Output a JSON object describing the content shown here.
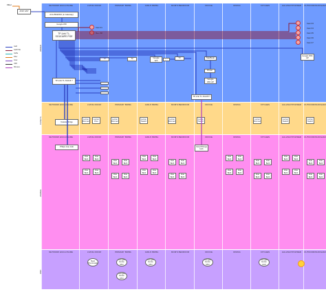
{
  "isp": {
    "fiber_label": "Fiber",
    "modem_label": "AT&T 2/67"
  },
  "lanes": [
    "NETWORK ENCLOSURE",
    "LIVING ROOM",
    "PRIMARY BR/BA",
    "GIRLS' BR/BA",
    "MOM'S BEDROOM",
    "OFFICE",
    "DINING",
    "KITCHEN",
    "HALLWAY/POWDER",
    "OUTDOOR/MUD/GARAGE"
  ],
  "lanes_second": [
    "NETWORK ENCLOSURE",
    "LIVING ROOM",
    "PRIMARY BR/BA",
    "GIRLS' BR/BA",
    "MOM'S BEDROOM",
    "OFFICE",
    "DINING",
    "KITCHEN",
    "HALLWAY/POWDER",
    "OUTDOOR/MUD/GARAGE"
  ],
  "rows": {
    "wired": "WIRED",
    "caseta": "CASETA",
    "zigbee": "ZIGBEE",
    "wifi": "WIFI"
  },
  "legend": [
    {
      "label": "Cat6",
      "color": "#2b3fbf"
    },
    {
      "label": "Cat6 PoE",
      "color": "#8a1b3a"
    },
    {
      "label": "Cat5e",
      "color": "#1fb3b3"
    },
    {
      "label": "Fiber",
      "color": "#e07b1a"
    },
    {
      "label": "Coax",
      "color": "#7a3fbf"
    },
    {
      "label": "USB",
      "color": "#333333"
    },
    {
      "label": "Wireless",
      "color": "#b03fbf"
    }
  ],
  "network": {
    "gateway": "Arris BGW210 (in Gateway)",
    "google_wifi": "Google Wifi",
    "switch_main": "TP-Link TL-SG1016PE POE",
    "switch_2": "TP-Link TL-SG116 ?",
    "nvr": "NVR",
    "office_switch": "TP-Link TL-SG105 ?"
  },
  "wired_devices": {
    "living": [
      "TV"
    ],
    "primary": [
      "TV"
    ],
    "girls": [
      "Google Wifi"
    ],
    "office": [
      "TV",
      "MacBook",
      "Printer",
      "Google WiFi AP"
    ],
    "outdoor_ap": "Google WiFi AP",
    "cameras": [
      "Cam 01",
      "Cam 02",
      "Cam 03",
      "Cam 04",
      "Cam 05",
      "Cam 06",
      "Cam 07"
    ]
  },
  "caseta": {
    "bridge": "Caseta Bridge",
    "devices": [
      {
        "lane": 1,
        "label": "Lutron Dimmer"
      },
      {
        "lane": 1,
        "label": "Lutron Pico"
      },
      {
        "lane": 2,
        "label": "Lutron Dimmer"
      },
      {
        "lane": 3,
        "label": "Lutron Switch"
      },
      {
        "lane": 4,
        "label": "Lutron Dimmer"
      },
      {
        "lane": 5,
        "label": "Lutron Switch"
      },
      {
        "lane": 7,
        "label": "Lutron Dimmer"
      },
      {
        "lane": 8,
        "label": "Lutron Switch"
      },
      {
        "lane": 9,
        "label": "Lutron Switch"
      }
    ]
  },
  "zigbee": {
    "hub": "Philips Hue Hub",
    "office_hub": "SmartThings Hub",
    "devices": [
      {
        "lane": 1,
        "label": "Hue Bulb"
      },
      {
        "lane": 2,
        "label": "Hue Bulb"
      },
      {
        "lane": 3,
        "label": "Hue Bulb"
      },
      {
        "lane": 4,
        "label": "Hue Bulb"
      },
      {
        "lane": 6,
        "label": "Hue Bulb"
      },
      {
        "lane": 7,
        "label": "Hue Bulb"
      },
      {
        "lane": 8,
        "label": "Hue Bulb"
      },
      {
        "lane": 9,
        "label": "Hue Bulb"
      }
    ]
  },
  "wifi": {
    "devices": [
      {
        "lane": 1,
        "label": "Nest Thermostat"
      },
      {
        "lane": 2,
        "label": "Google Home Mini"
      },
      {
        "lane": 2,
        "label": "Google Home Mini"
      },
      {
        "lane": 3,
        "label": "Google Home Mini"
      },
      {
        "lane": 5,
        "label": "Google Home Mini"
      },
      {
        "lane": 7,
        "label": "Google Home Hub"
      }
    ]
  },
  "colors": {
    "wired_bg": "#6f9bff",
    "caseta_bg": "#ffd98a",
    "zigbee_bg": "#ff8ef0",
    "wifi_bg": "#c7a0ff",
    "line_blue": "#2b3fbf",
    "line_poe": "#8a1b3a"
  }
}
